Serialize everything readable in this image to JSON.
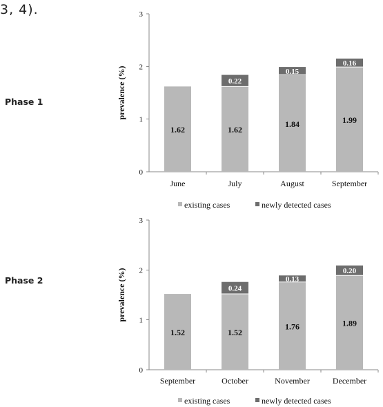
{
  "fragment_text": "3, 4).",
  "chart_data": [
    {
      "type": "bar",
      "stacked": true,
      "phase_label": "Phase 1",
      "ylabel": "prevalence  (%)",
      "ylim": [
        0,
        3
      ],
      "yticks": [
        "0",
        "1",
        "2",
        "3"
      ],
      "categories": [
        "June",
        "July",
        "August",
        "September"
      ],
      "series": [
        {
          "name": "existing cases",
          "color": "#b8b8b8",
          "values": [
            1.62,
            1.62,
            1.84,
            1.99
          ],
          "labels": [
            "1.62",
            "1.62",
            "1.84",
            "1.99"
          ]
        },
        {
          "name": "newly detected cases",
          "color": "#6d6d6d",
          "values": [
            0,
            0.22,
            0.15,
            0.16
          ],
          "labels": [
            "",
            "0.22",
            "0.15",
            "0.16"
          ]
        }
      ],
      "legend_position": "bottom"
    },
    {
      "type": "bar",
      "stacked": true,
      "phase_label": "Phase 2",
      "ylabel": "prevalence (%)",
      "ylim": [
        0,
        3
      ],
      "yticks": [
        "0",
        "1",
        "2",
        "3"
      ],
      "categories": [
        "September",
        "October",
        "November",
        "December"
      ],
      "series": [
        {
          "name": "existing cases",
          "color": "#b8b8b8",
          "values": [
            1.52,
            1.52,
            1.76,
            1.89
          ],
          "labels": [
            "1.52",
            "1.52",
            "1.76",
            "1.89"
          ]
        },
        {
          "name": "newly detected cases",
          "color": "#6d6d6d",
          "values": [
            0,
            0.24,
            0.13,
            0.2
          ],
          "labels": [
            "",
            "0.24",
            "0.13",
            "0.20"
          ]
        }
      ],
      "legend_position": "bottom"
    }
  ]
}
